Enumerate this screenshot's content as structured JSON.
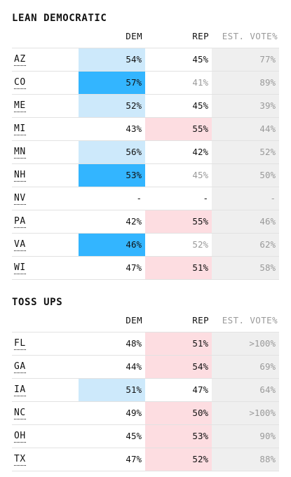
{
  "sections": [
    {
      "title": "LEAN DEMOCRATIC",
      "headers": {
        "dem": "DEM",
        "rep": "REP",
        "vote": "EST. VOTE%"
      },
      "rows": [
        {
          "state": "AZ",
          "dem": "54%",
          "rep": "45%",
          "vote": "77%",
          "dem_fill": "light",
          "rep_fill": "none"
        },
        {
          "state": "CO",
          "dem": "57%",
          "rep": "41%",
          "vote": "89%",
          "dem_fill": "strong",
          "rep_fill": "muted"
        },
        {
          "state": "ME",
          "dem": "52%",
          "rep": "45%",
          "vote": "39%",
          "dem_fill": "light",
          "rep_fill": "none"
        },
        {
          "state": "MI",
          "dem": "43%",
          "rep": "55%",
          "vote": "44%",
          "dem_fill": "none",
          "rep_fill": "light"
        },
        {
          "state": "MN",
          "dem": "56%",
          "rep": "42%",
          "vote": "52%",
          "dem_fill": "light",
          "rep_fill": "none"
        },
        {
          "state": "NH",
          "dem": "53%",
          "rep": "45%",
          "vote": "50%",
          "dem_fill": "strong",
          "rep_fill": "muted"
        },
        {
          "state": "NV",
          "dem": "-",
          "rep": "-",
          "vote": "-",
          "dem_fill": "none",
          "rep_fill": "none"
        },
        {
          "state": "PA",
          "dem": "42%",
          "rep": "55%",
          "vote": "46%",
          "dem_fill": "none",
          "rep_fill": "light"
        },
        {
          "state": "VA",
          "dem": "46%",
          "rep": "52%",
          "vote": "62%",
          "dem_fill": "strong",
          "rep_fill": "muted"
        },
        {
          "state": "WI",
          "dem": "47%",
          "rep": "51%",
          "vote": "58%",
          "dem_fill": "none",
          "rep_fill": "light"
        }
      ]
    },
    {
      "title": "TOSS UPS",
      "headers": {
        "dem": "DEM",
        "rep": "REP",
        "vote": "EST. VOTE%"
      },
      "rows": [
        {
          "state": "FL",
          "dem": "48%",
          "rep": "51%",
          "vote": ">100%",
          "dem_fill": "none",
          "rep_fill": "light"
        },
        {
          "state": "GA",
          "dem": "44%",
          "rep": "54%",
          "vote": "69%",
          "dem_fill": "none",
          "rep_fill": "light"
        },
        {
          "state": "IA",
          "dem": "51%",
          "rep": "47%",
          "vote": "64%",
          "dem_fill": "light",
          "rep_fill": "none"
        },
        {
          "state": "NC",
          "dem": "49%",
          "rep": "50%",
          "vote": ">100%",
          "dem_fill": "none",
          "rep_fill": "light"
        },
        {
          "state": "OH",
          "dem": "45%",
          "rep": "53%",
          "vote": "90%",
          "dem_fill": "none",
          "rep_fill": "light"
        },
        {
          "state": "TX",
          "dem": "47%",
          "rep": "52%",
          "vote": "88%",
          "dem_fill": "none",
          "rep_fill": "light"
        }
      ]
    }
  ],
  "colors": {
    "dem_light": "#cde9fb",
    "dem_strong": "#33b5ff",
    "rep_light": "#fddde1",
    "vote_bg": "#efefef"
  }
}
